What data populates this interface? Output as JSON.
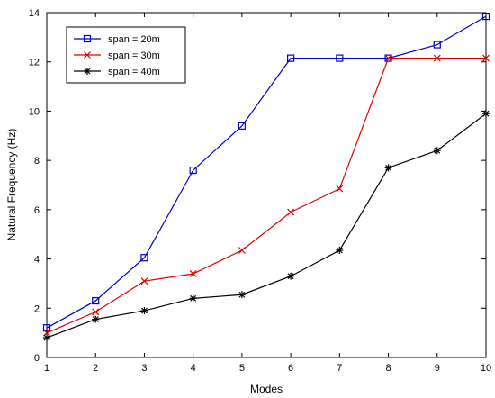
{
  "chart_data": {
    "type": "line",
    "title": "",
    "xlabel": "Modes",
    "ylabel": "Natural Frequency (Hz)",
    "x": [
      1,
      2,
      3,
      4,
      5,
      6,
      7,
      8,
      9,
      10
    ],
    "xlim": [
      1,
      10
    ],
    "ylim": [
      0,
      14
    ],
    "yticks": [
      0,
      2,
      4,
      6,
      8,
      10,
      12,
      14
    ],
    "xticks": [
      1,
      2,
      3,
      4,
      5,
      6,
      7,
      8,
      9,
      10
    ],
    "grid": false,
    "legend_position": "top-left",
    "series": [
      {
        "name": "span = 20m",
        "color": "#0000cc",
        "marker": "square",
        "values": [
          1.2,
          2.3,
          4.05,
          7.6,
          9.4,
          12.15,
          12.15,
          12.15,
          12.7,
          13.85
        ]
      },
      {
        "name": "span = 30m",
        "color": "#dd0000",
        "marker": "x",
        "values": [
          1.0,
          1.85,
          3.1,
          3.4,
          4.35,
          5.9,
          6.85,
          12.15,
          12.15,
          12.15
        ]
      },
      {
        "name": "span = 40m",
        "color": "#000000",
        "marker": "asterisk",
        "values": [
          0.8,
          1.55,
          1.9,
          2.4,
          2.55,
          3.3,
          4.35,
          7.7,
          8.4,
          9.9
        ]
      }
    ]
  }
}
